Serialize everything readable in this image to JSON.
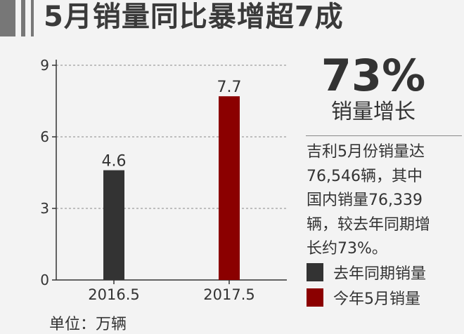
{
  "header": {
    "title": "5月销量同比暴增超7成"
  },
  "chart_data": {
    "type": "bar",
    "categories": [
      "2016.5",
      "2017.5"
    ],
    "values": [
      4.6,
      7.7
    ],
    "value_labels": [
      "4.6",
      "7.7"
    ],
    "colors": [
      "#333333",
      "#8b0000"
    ],
    "ylim": [
      0,
      9
    ],
    "yticks": [
      0,
      3,
      6,
      9
    ],
    "grid": true,
    "unit_label": "单位：万辆"
  },
  "side_panel": {
    "highlight_value": "73%",
    "highlight_label": "销量增长",
    "description": [
      "吉利5月份销量达",
      "76,546辆，其中",
      "国内销量76,339",
      "辆，较去年同期增",
      "长约73%。"
    ]
  },
  "legend": {
    "items": [
      {
        "label": "去年同期销量",
        "color": "#333333"
      },
      {
        "label": "今年5月销量",
        "color": "#8b0000"
      }
    ]
  }
}
